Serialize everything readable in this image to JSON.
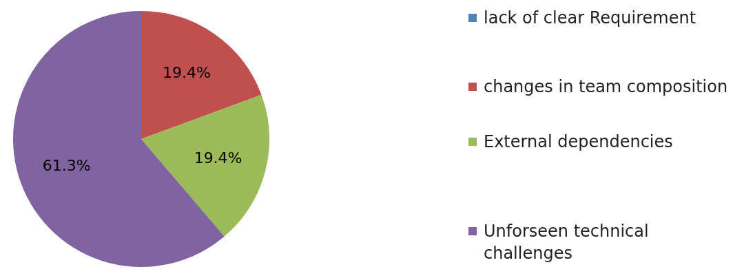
{
  "chart_data": {
    "type": "pie",
    "categories": [
      "lack of clear Requirement",
      "changes in team composition",
      "External dependencies",
      "Unforseen technical challenges"
    ],
    "values": [
      0,
      19.4,
      19.4,
      61.3
    ],
    "colors": [
      "#4f81bd",
      "#c0504d",
      "#9bbb59",
      "#8064a2"
    ],
    "value_labels": [
      null,
      "19.4%",
      "19.4%",
      "61.3%"
    ],
    "legend": "right"
  }
}
